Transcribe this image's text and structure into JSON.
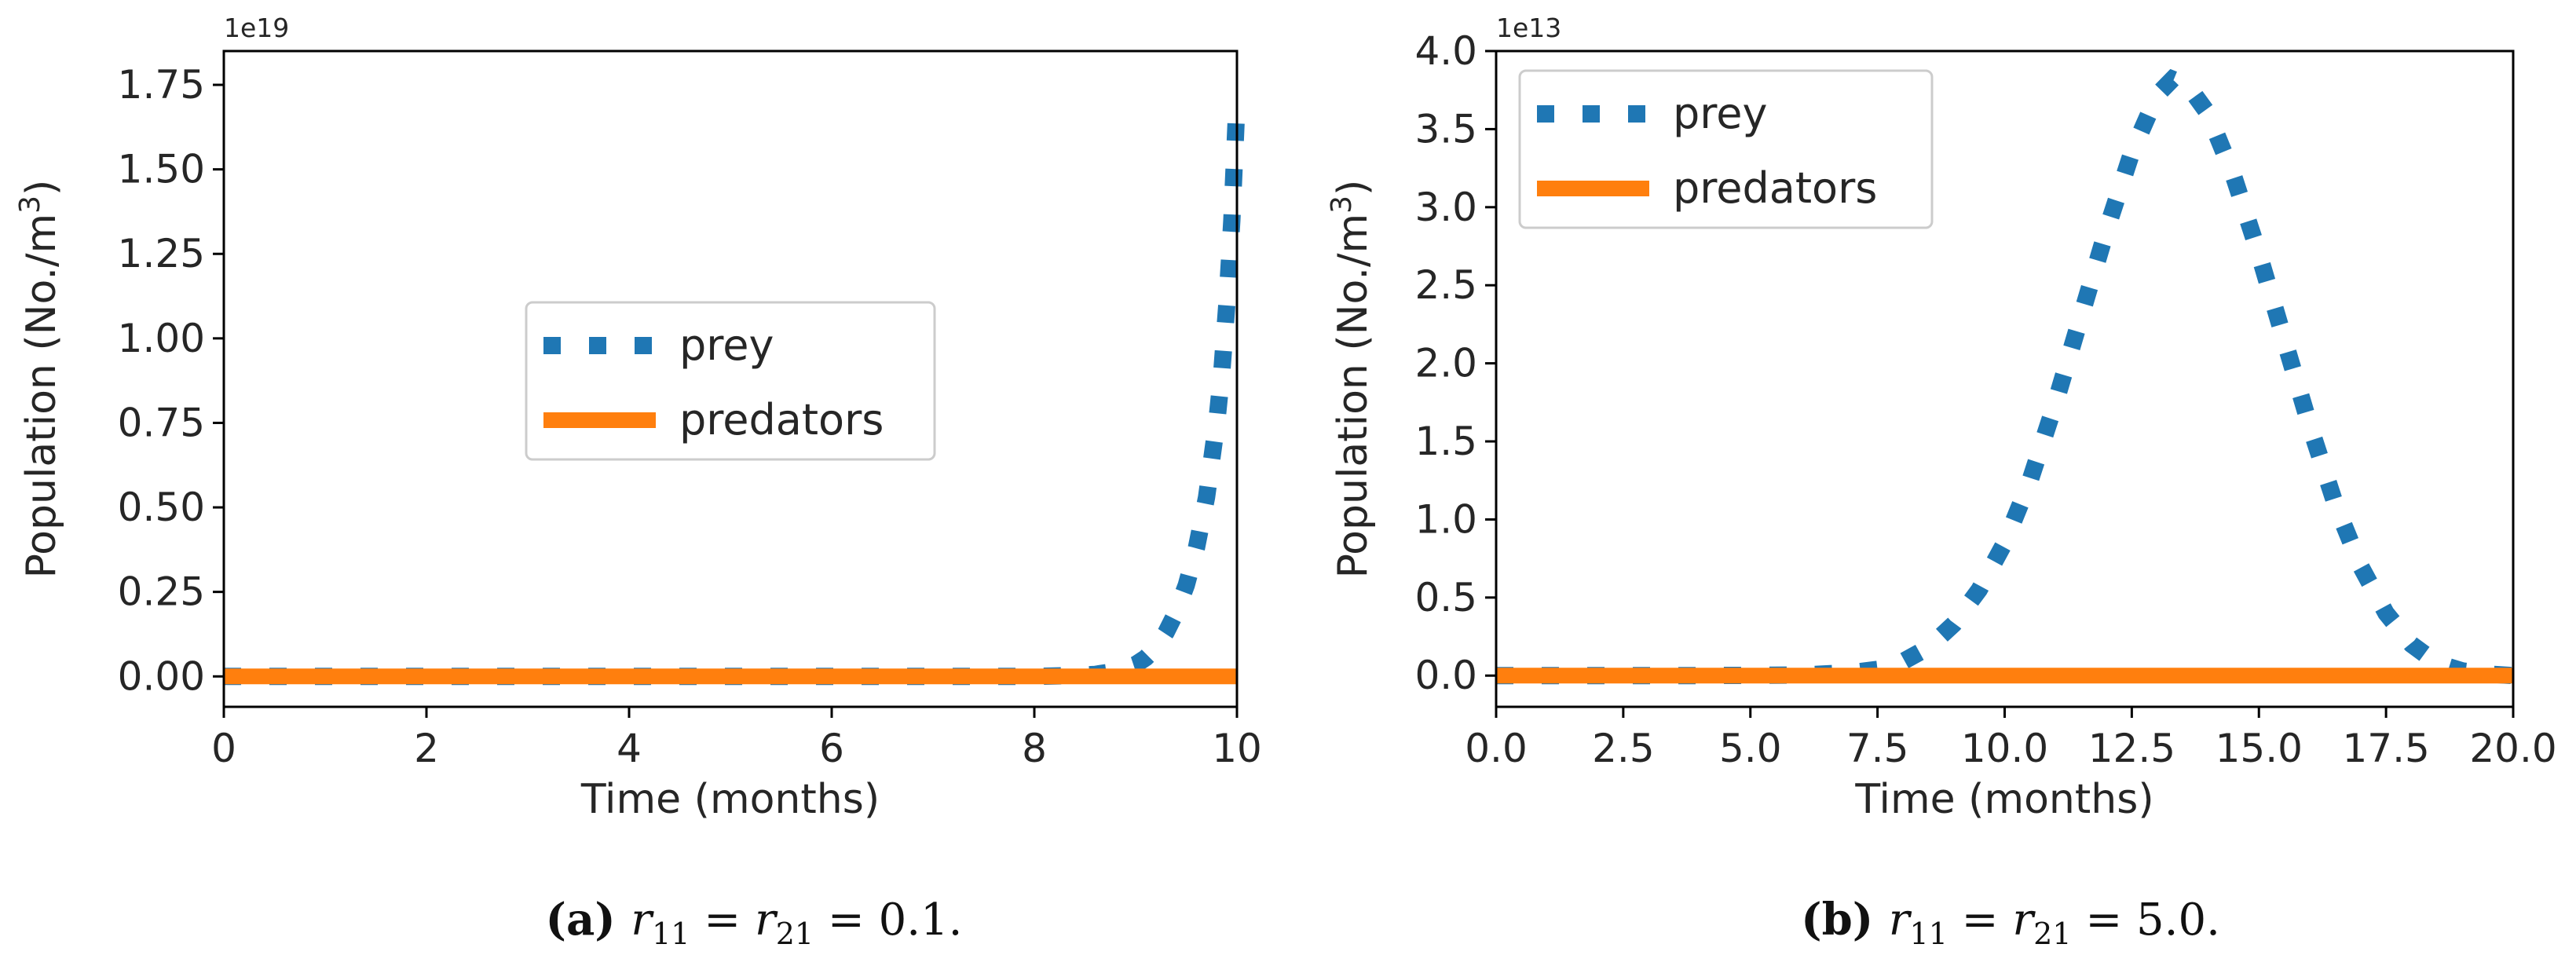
{
  "chart_data": [
    {
      "type": "line",
      "panel": "a",
      "caption_tag": "(a)",
      "caption_formula": "r11 = r21 = 0.1.",
      "caption_parts": [
        "r",
        "11",
        " = r",
        "21",
        " = 0.1."
      ],
      "xlabel": "Time (months)",
      "ylabel_main": "Population (No./m",
      "ylabel_sup": "3",
      "ylabel_end": ")",
      "offset_text": "1e19",
      "xlim": [
        0,
        10
      ],
      "ylim": [
        -0.09,
        1.85
      ],
      "xticks": [
        0,
        2,
        4,
        6,
        8,
        10
      ],
      "xtick_labels": [
        "0",
        "2",
        "4",
        "6",
        "8",
        "10"
      ],
      "yticks": [
        0.0,
        0.25,
        0.5,
        0.75,
        1.0,
        1.25,
        1.5,
        1.75
      ],
      "ytick_labels": [
        "0.00",
        "0.25",
        "0.50",
        "0.75",
        "1.00",
        "1.25",
        "1.50",
        "1.75"
      ],
      "legend_position": "center-right",
      "series": [
        {
          "name": "prey",
          "style": "dotted",
          "color": "#1f77b4",
          "x": [
            0,
            1,
            2,
            3,
            4,
            5,
            6,
            7,
            8,
            8.4,
            8.6,
            8.8,
            9.0,
            9.1,
            9.2,
            9.3,
            9.4,
            9.5,
            9.6,
            9.7,
            9.8,
            9.85,
            9.9,
            9.95,
            10.0
          ],
          "y": [
            0,
            0,
            0,
            0,
            0,
            0,
            0,
            0,
            0,
            0.003,
            0.006,
            0.015,
            0.035,
            0.055,
            0.085,
            0.13,
            0.19,
            0.27,
            0.38,
            0.53,
            0.75,
            0.9,
            1.1,
            1.35,
            1.7
          ]
        },
        {
          "name": "predators",
          "style": "solid",
          "color": "#ff7f0e",
          "x": [
            0,
            10
          ],
          "y": [
            0,
            0
          ]
        }
      ]
    },
    {
      "type": "line",
      "panel": "b",
      "caption_tag": "(b)",
      "caption_formula": "r11 = r21 = 5.0.",
      "caption_parts": [
        "r",
        "11",
        " = r",
        "21",
        " = 5.0."
      ],
      "xlabel": "Time (months)",
      "ylabel_main": "Population (No./m",
      "ylabel_sup": "3",
      "ylabel_end": ")",
      "offset_text": "1e13",
      "xlim": [
        0,
        20
      ],
      "ylim": [
        -0.2,
        4.0
      ],
      "xticks": [
        0,
        2.5,
        5,
        7.5,
        10,
        12.5,
        15,
        17.5,
        20
      ],
      "xtick_labels": [
        "0.0",
        "2.5",
        "5.0",
        "7.5",
        "10.0",
        "12.5",
        "15.0",
        "17.5",
        "20.0"
      ],
      "yticks": [
        0,
        0.5,
        1.0,
        1.5,
        2.0,
        2.5,
        3.0,
        3.5,
        4.0
      ],
      "ytick_labels": [
        "0.0",
        "0.5",
        "1.0",
        "1.5",
        "2.0",
        "2.5",
        "3.0",
        "3.5",
        "4.0"
      ],
      "legend_position": "upper-left",
      "series": [
        {
          "name": "prey",
          "style": "dotted",
          "color": "#1f77b4",
          "x": [
            0,
            2,
            4,
            6,
            7,
            7.5,
            8,
            8.5,
            9,
            9.5,
            10,
            10.5,
            11,
            11.5,
            12,
            12.5,
            13,
            13.3,
            13.6,
            14,
            14.5,
            15,
            15.5,
            16,
            16.5,
            17,
            17.5,
            18,
            18.5,
            19,
            19.5,
            20
          ],
          "y": [
            0,
            0,
            0,
            0.003,
            0.02,
            0.04,
            0.09,
            0.18,
            0.33,
            0.55,
            0.85,
            1.25,
            1.75,
            2.3,
            2.85,
            3.35,
            3.72,
            3.82,
            3.78,
            3.6,
            3.2,
            2.7,
            2.15,
            1.6,
            1.1,
            0.7,
            0.4,
            0.2,
            0.08,
            0.03,
            0.01,
            0
          ]
        },
        {
          "name": "predators",
          "style": "solid",
          "color": "#ff7f0e",
          "x": [
            0,
            20
          ],
          "y": [
            0,
            0
          ]
        }
      ]
    }
  ]
}
